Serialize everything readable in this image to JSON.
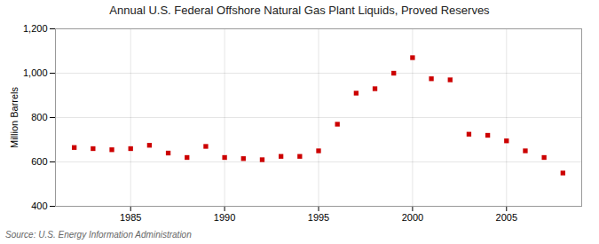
{
  "chart_data": {
    "type": "scatter",
    "title": "Annual U.S. Federal Offshore Natural Gas Plant Liquids, Proved Reserves",
    "ylabel": "Million Barrels",
    "source": "Source: U.S. Energy Information Administration",
    "x": [
      1982,
      1983,
      1984,
      1985,
      1986,
      1987,
      1988,
      1989,
      1990,
      1991,
      1992,
      1993,
      1994,
      1995,
      1996,
      1997,
      1998,
      1999,
      2000,
      2001,
      2002,
      2003,
      2004,
      2005,
      2006,
      2007,
      2008
    ],
    "values": [
      665,
      660,
      655,
      660,
      675,
      640,
      620,
      670,
      620,
      615,
      610,
      625,
      625,
      650,
      770,
      910,
      930,
      1000,
      1070,
      975,
      970,
      725,
      720,
      695,
      650,
      620,
      550
    ],
    "color": "#cc0000",
    "marker": "square",
    "xlim": [
      1981,
      2009
    ],
    "xticks": [
      1985,
      1990,
      1995,
      2000,
      2005
    ],
    "ylim": [
      400,
      1200
    ],
    "yticks": [
      400,
      600,
      800,
      {
        "value": 1000,
        "label": "1,000"
      },
      {
        "value": 1200,
        "label": "1,200"
      }
    ],
    "grid": true
  }
}
